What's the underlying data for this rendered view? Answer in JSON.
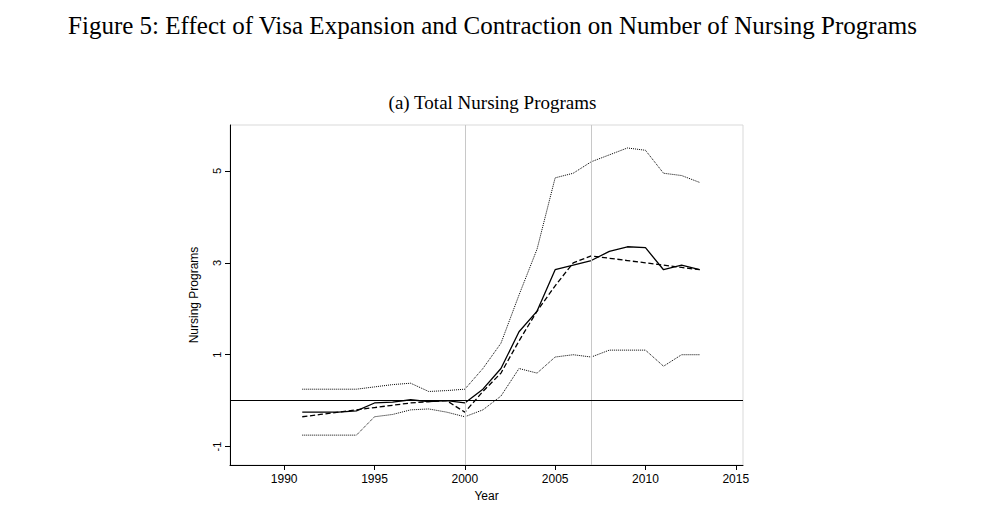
{
  "chart_data": {
    "type": "line",
    "title": "Figure 5: Effect of Visa Expansion and Contraction on Number of Nursing Programs",
    "subtitle": "(a) Total Nursing Programs",
    "x_label": "Year",
    "y_label": "Nursing Programs",
    "x": [
      1991,
      1992,
      1993,
      1994,
      1995,
      1996,
      1997,
      1998,
      1999,
      2000,
      2001,
      2002,
      2003,
      2004,
      2005,
      2006,
      2007,
      2008,
      2009,
      2010,
      2011,
      2012,
      2013
    ],
    "series": [
      {
        "color": "#000000",
        "line_style": "solid",
        "values": [
          -0.25,
          -0.25,
          -0.25,
          -0.22,
          -0.05,
          -0.03,
          0.02,
          -0.02,
          0.0,
          -0.05,
          0.25,
          0.7,
          1.5,
          1.95,
          2.85,
          2.95,
          3.05,
          3.25,
          3.35,
          3.33,
          2.85,
          2.95,
          2.85
        ]
      },
      {
        "color": "#000000",
        "line_style": "dashed",
        "values": [
          -0.35,
          -0.3,
          -0.25,
          -0.2,
          -0.15,
          -0.1,
          -0.05,
          -0.02,
          0.0,
          -0.25,
          0.2,
          0.6,
          1.3,
          1.95,
          2.5,
          3.0,
          3.15,
          3.1,
          3.05,
          3.0,
          2.95,
          2.9,
          2.85
        ]
      },
      {
        "color": "#000000",
        "line_style": "dotted",
        "values": [
          0.25,
          0.25,
          0.25,
          0.25,
          0.3,
          0.35,
          0.38,
          0.2,
          0.22,
          0.25,
          0.7,
          1.25,
          2.3,
          3.3,
          4.85,
          4.95,
          5.2,
          5.35,
          5.5,
          5.45,
          4.95,
          4.9,
          4.75
        ]
      },
      {
        "color": "#000000",
        "line_style": "dotted",
        "values": [
          -0.75,
          -0.75,
          -0.75,
          -0.75,
          -0.35,
          -0.3,
          -0.2,
          -0.18,
          -0.25,
          -0.35,
          -0.2,
          0.1,
          0.7,
          0.6,
          0.95,
          1.0,
          0.95,
          1.1,
          1.1,
          1.1,
          0.75,
          1.0,
          1.0
        ]
      }
    ],
    "vlines": [
      2000,
      2007
    ],
    "hlines": [
      0
    ],
    "xlim": [
      1987,
      2015.4
    ],
    "xticks": [
      1990,
      1995,
      2000,
      2005,
      2010,
      2015
    ],
    "ylim": [
      -1.4,
      6
    ],
    "yticks": [
      -1,
      1,
      3,
      5
    ],
    "grid": false
  }
}
